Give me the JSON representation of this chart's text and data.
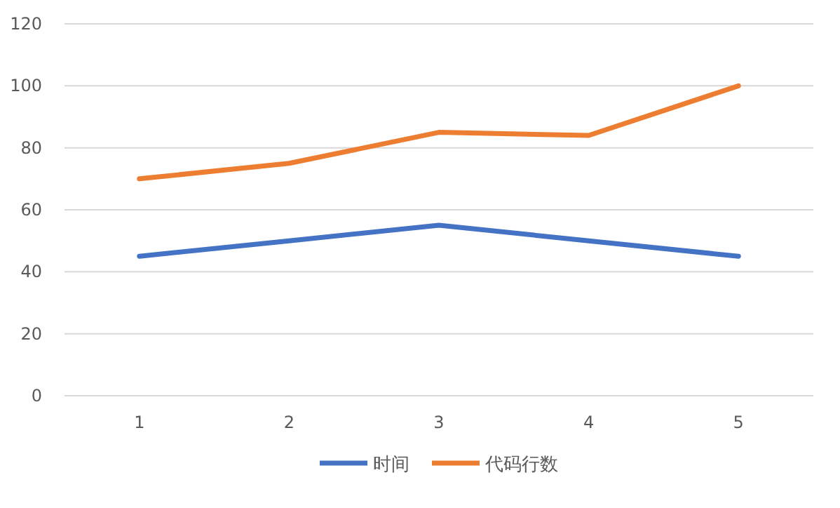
{
  "chart_data": {
    "type": "line",
    "categories": [
      "1",
      "2",
      "3",
      "4",
      "5"
    ],
    "series": [
      {
        "name": "时间",
        "color": "#4472c4",
        "values": [
          45,
          50,
          55,
          50,
          45
        ]
      },
      {
        "name": "代码行数",
        "color": "#ed7d31",
        "values": [
          70,
          75,
          85,
          84,
          100
        ]
      }
    ],
    "ylim": [
      0,
      120
    ],
    "yticks": [
      0,
      20,
      40,
      60,
      80,
      100,
      120
    ],
    "grid": "y",
    "legend": "bottom",
    "marker": "none",
    "line_style": "solid"
  }
}
